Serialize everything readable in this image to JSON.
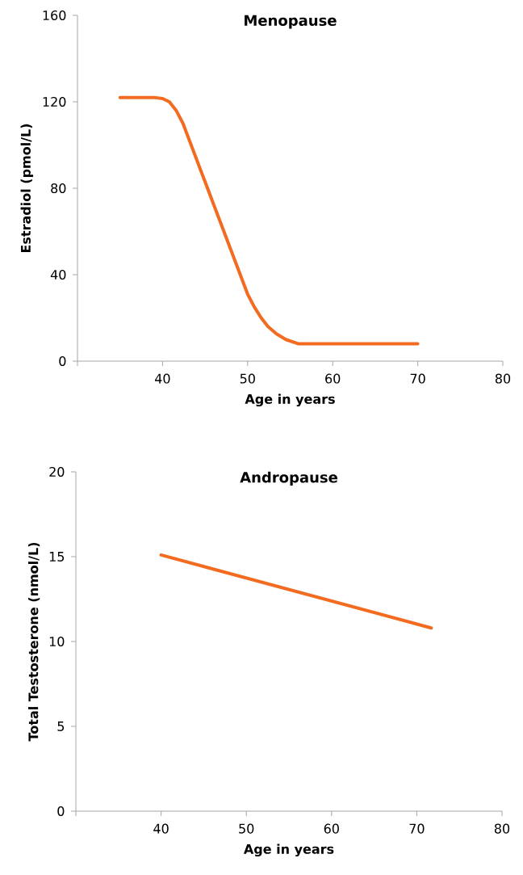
{
  "chart_data": [
    {
      "type": "line",
      "title": "Menopause",
      "xlabel": "Age in years",
      "ylabel": "Estradiol (pmol/L)",
      "color": "#f26b21",
      "x": [
        35,
        39,
        40,
        40.8,
        41.6,
        42.4,
        50,
        50.8,
        51.6,
        52.4,
        53.4,
        54.5,
        56,
        70
      ],
      "values": [
        122,
        122,
        121.5,
        120,
        116,
        110,
        31,
        25,
        20,
        16,
        12.6,
        10,
        8,
        8
      ],
      "xlim": [
        30,
        80
      ],
      "ylim": [
        0,
        160
      ],
      "xticks": [
        {
          "value": 30,
          "label": null
        },
        40,
        50,
        60,
        70,
        80
      ],
      "yticks": [
        0,
        40,
        80,
        120,
        160
      ]
    },
    {
      "type": "line",
      "title": "Andropause",
      "xlabel": "Age in years",
      "ylabel": "Total Testosterone (nmol/L)",
      "color": "#f26b21",
      "x": [
        40,
        71.7
      ],
      "values": [
        15.1,
        10.8
      ],
      "xlim": [
        30,
        80
      ],
      "ylim": [
        0,
        20
      ],
      "xticks": [
        {
          "value": 30,
          "label": null
        },
        40,
        50,
        60,
        70,
        80
      ],
      "yticks": [
        0,
        5,
        10,
        15,
        20
      ]
    }
  ]
}
